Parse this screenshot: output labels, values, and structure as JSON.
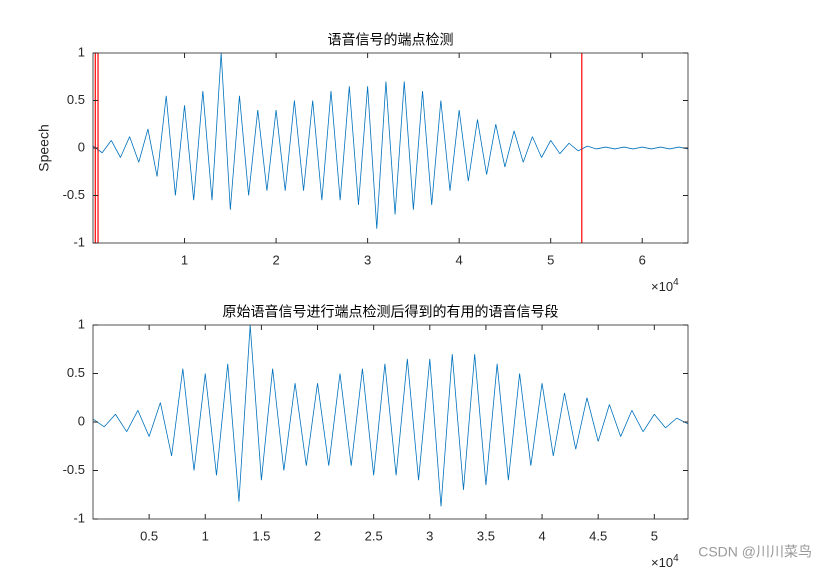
{
  "chart_data": [
    {
      "type": "line",
      "title": "语音信号的端点检测",
      "ylabel": "Speech",
      "color": "#0072bd",
      "x": [
        0,
        1000,
        2000,
        3000,
        4000,
        5000,
        6000,
        7000,
        8000,
        9000,
        10000,
        11000,
        12000,
        13000,
        14000,
        15000,
        16000,
        17000,
        18000,
        19000,
        20000,
        21000,
        22000,
        23000,
        24000,
        25000,
        26000,
        27000,
        28000,
        29000,
        30000,
        31000,
        32000,
        33000,
        34000,
        35000,
        36000,
        37000,
        38000,
        39000,
        40000,
        41000,
        42000,
        43000,
        44000,
        45000,
        46000,
        47000,
        48000,
        49000,
        50000,
        51000,
        52000,
        53000,
        54000,
        55000,
        56000,
        57000,
        58000,
        59000,
        60000,
        61000,
        62000,
        63000,
        64000,
        65000
      ],
      "values": [
        0.02,
        -0.05,
        0.08,
        -0.1,
        0.12,
        -0.15,
        0.2,
        -0.3,
        0.55,
        -0.5,
        0.45,
        -0.55,
        0.6,
        -0.55,
        1,
        -0.65,
        0.55,
        -0.5,
        0.4,
        -0.45,
        0.4,
        -0.45,
        0.5,
        -0.45,
        0.5,
        -0.55,
        0.6,
        -0.55,
        0.65,
        -0.6,
        0.65,
        -0.85,
        0.7,
        -0.7,
        0.7,
        -0.65,
        0.6,
        -0.6,
        0.5,
        -0.45,
        0.4,
        -0.35,
        0.3,
        -0.28,
        0.25,
        -0.2,
        0.18,
        -0.15,
        0.12,
        -0.1,
        0.08,
        -0.06,
        0.05,
        -0.03,
        0.02,
        -0.01,
        0.01,
        -0.01,
        0.01,
        -0.01,
        0.01,
        -0.01,
        0.01,
        -0.01,
        0.01,
        -0.01
      ],
      "vlines": [
        250,
        550,
        53400
      ],
      "vline_color": "#ff0000",
      "xlim": [
        0,
        65000
      ],
      "xticks": [
        {
          "value": 10000,
          "label": "1"
        },
        {
          "value": 20000,
          "label": "2"
        },
        {
          "value": 30000,
          "label": "3"
        },
        {
          "value": 40000,
          "label": "4"
        },
        {
          "value": 50000,
          "label": "5"
        },
        {
          "value": 60000,
          "label": "6"
        }
      ],
      "x_multiplier": {
        "base": "×10",
        "exponent": "4"
      },
      "ylim": [
        -1,
        1
      ],
      "yticks": [
        -1,
        -0.5,
        0,
        0.5,
        1
      ]
    },
    {
      "type": "line",
      "title": "原始语音信号进行端点检测后得到的有用的语音信号段",
      "color": "#0072bd",
      "x": [
        0,
        1000,
        2000,
        3000,
        4000,
        5000,
        6000,
        7000,
        8000,
        9000,
        10000,
        11000,
        12000,
        13000,
        14000,
        15000,
        16000,
        17000,
        18000,
        19000,
        20000,
        21000,
        22000,
        23000,
        24000,
        25000,
        26000,
        27000,
        28000,
        29000,
        30000,
        31000,
        32000,
        33000,
        34000,
        35000,
        36000,
        37000,
        38000,
        39000,
        40000,
        41000,
        42000,
        43000,
        44000,
        45000,
        46000,
        47000,
        48000,
        49000,
        50000,
        51000,
        52000,
        53000
      ],
      "values": [
        0.03,
        -0.05,
        0.08,
        -0.1,
        0.12,
        -0.15,
        0.2,
        -0.35,
        0.55,
        -0.5,
        0.5,
        -0.55,
        0.6,
        -0.82,
        1,
        -0.6,
        0.55,
        -0.5,
        0.4,
        -0.45,
        0.4,
        -0.45,
        0.5,
        -0.45,
        0.55,
        -0.55,
        0.6,
        -0.55,
        0.65,
        -0.6,
        0.65,
        -0.87,
        0.7,
        -0.7,
        0.7,
        -0.65,
        0.6,
        -0.6,
        0.5,
        -0.45,
        0.4,
        -0.35,
        0.3,
        -0.28,
        0.25,
        -0.2,
        0.18,
        -0.15,
        0.12,
        -0.1,
        0.08,
        -0.06,
        0.04,
        -0.02
      ],
      "xlim": [
        0,
        53000
      ],
      "xticks": [
        {
          "value": 5000,
          "label": "0.5"
        },
        {
          "value": 10000,
          "label": "1"
        },
        {
          "value": 15000,
          "label": "1.5"
        },
        {
          "value": 20000,
          "label": "2"
        },
        {
          "value": 25000,
          "label": "2.5"
        },
        {
          "value": 30000,
          "label": "3"
        },
        {
          "value": 35000,
          "label": "3.5"
        },
        {
          "value": 40000,
          "label": "4"
        },
        {
          "value": 45000,
          "label": "4.5"
        },
        {
          "value": 50000,
          "label": "5"
        }
      ],
      "x_multiplier": {
        "base": "×10",
        "exponent": "4"
      },
      "ylim": [
        -1,
        1
      ],
      "yticks": [
        -1,
        -0.5,
        0,
        0.5,
        1
      ]
    }
  ],
  "watermark": "CSDN @川川菜鸟"
}
